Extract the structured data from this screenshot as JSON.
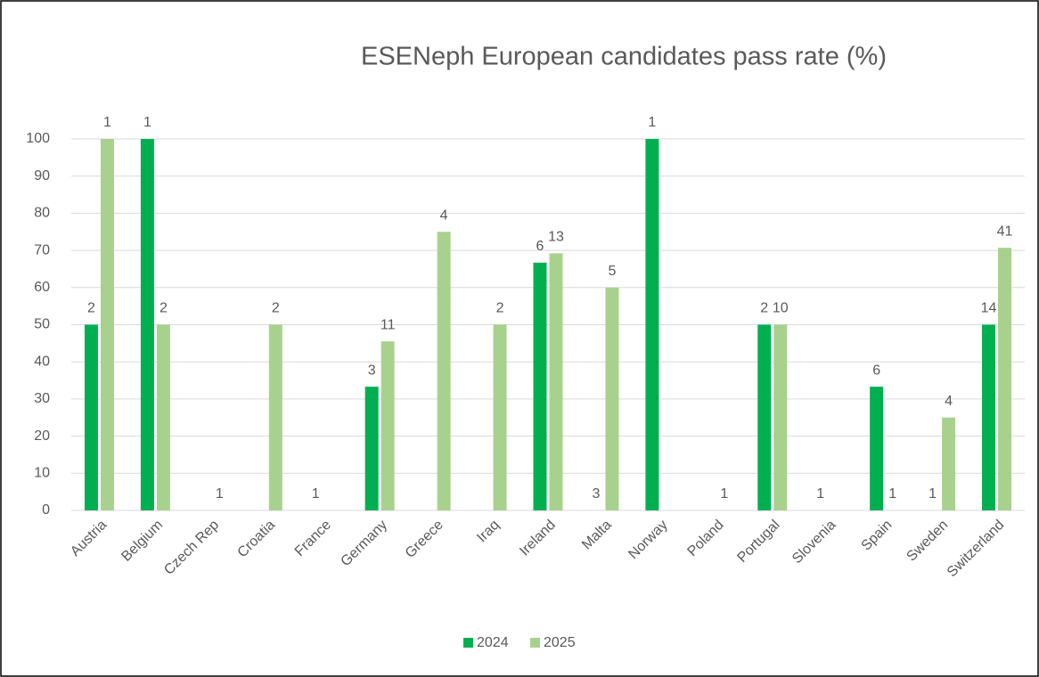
{
  "chart_data": {
    "type": "bar",
    "title": "ESENeph European candidates pass rate (%)",
    "categories": [
      "Austria",
      "Belgium",
      "Czech Rep",
      "Croatia",
      "France",
      "Germany",
      "Greece",
      "Iraq",
      "Ireland",
      "Malta",
      "Norway",
      "Poland",
      "Portugal",
      "Slovenia",
      "Spain",
      "Sweden",
      "Switzerland"
    ],
    "series": [
      {
        "name": "2024",
        "color": "#00b050",
        "values": [
          50,
          100,
          null,
          null,
          0,
          33.3,
          null,
          null,
          66.7,
          0,
          100,
          null,
          50,
          0,
          33.3,
          0,
          50
        ],
        "counts": [
          2,
          1,
          null,
          null,
          1,
          3,
          null,
          null,
          6,
          3,
          1,
          null,
          2,
          1,
          6,
          1,
          14
        ]
      },
      {
        "name": "2025",
        "color": "#a9d18e",
        "values": [
          100,
          50,
          0,
          50,
          null,
          45.5,
          75,
          50,
          69.2,
          60,
          null,
          0,
          50,
          null,
          0,
          25,
          70.7
        ],
        "counts": [
          1,
          2,
          1,
          2,
          null,
          11,
          4,
          2,
          13,
          5,
          null,
          1,
          10,
          null,
          1,
          4,
          41
        ]
      }
    ],
    "ylim": [
      0,
      100
    ],
    "yticks": [
      0,
      10,
      20,
      30,
      40,
      50,
      60,
      70,
      80,
      90,
      100
    ],
    "grid": true,
    "legend": "bottom"
  }
}
